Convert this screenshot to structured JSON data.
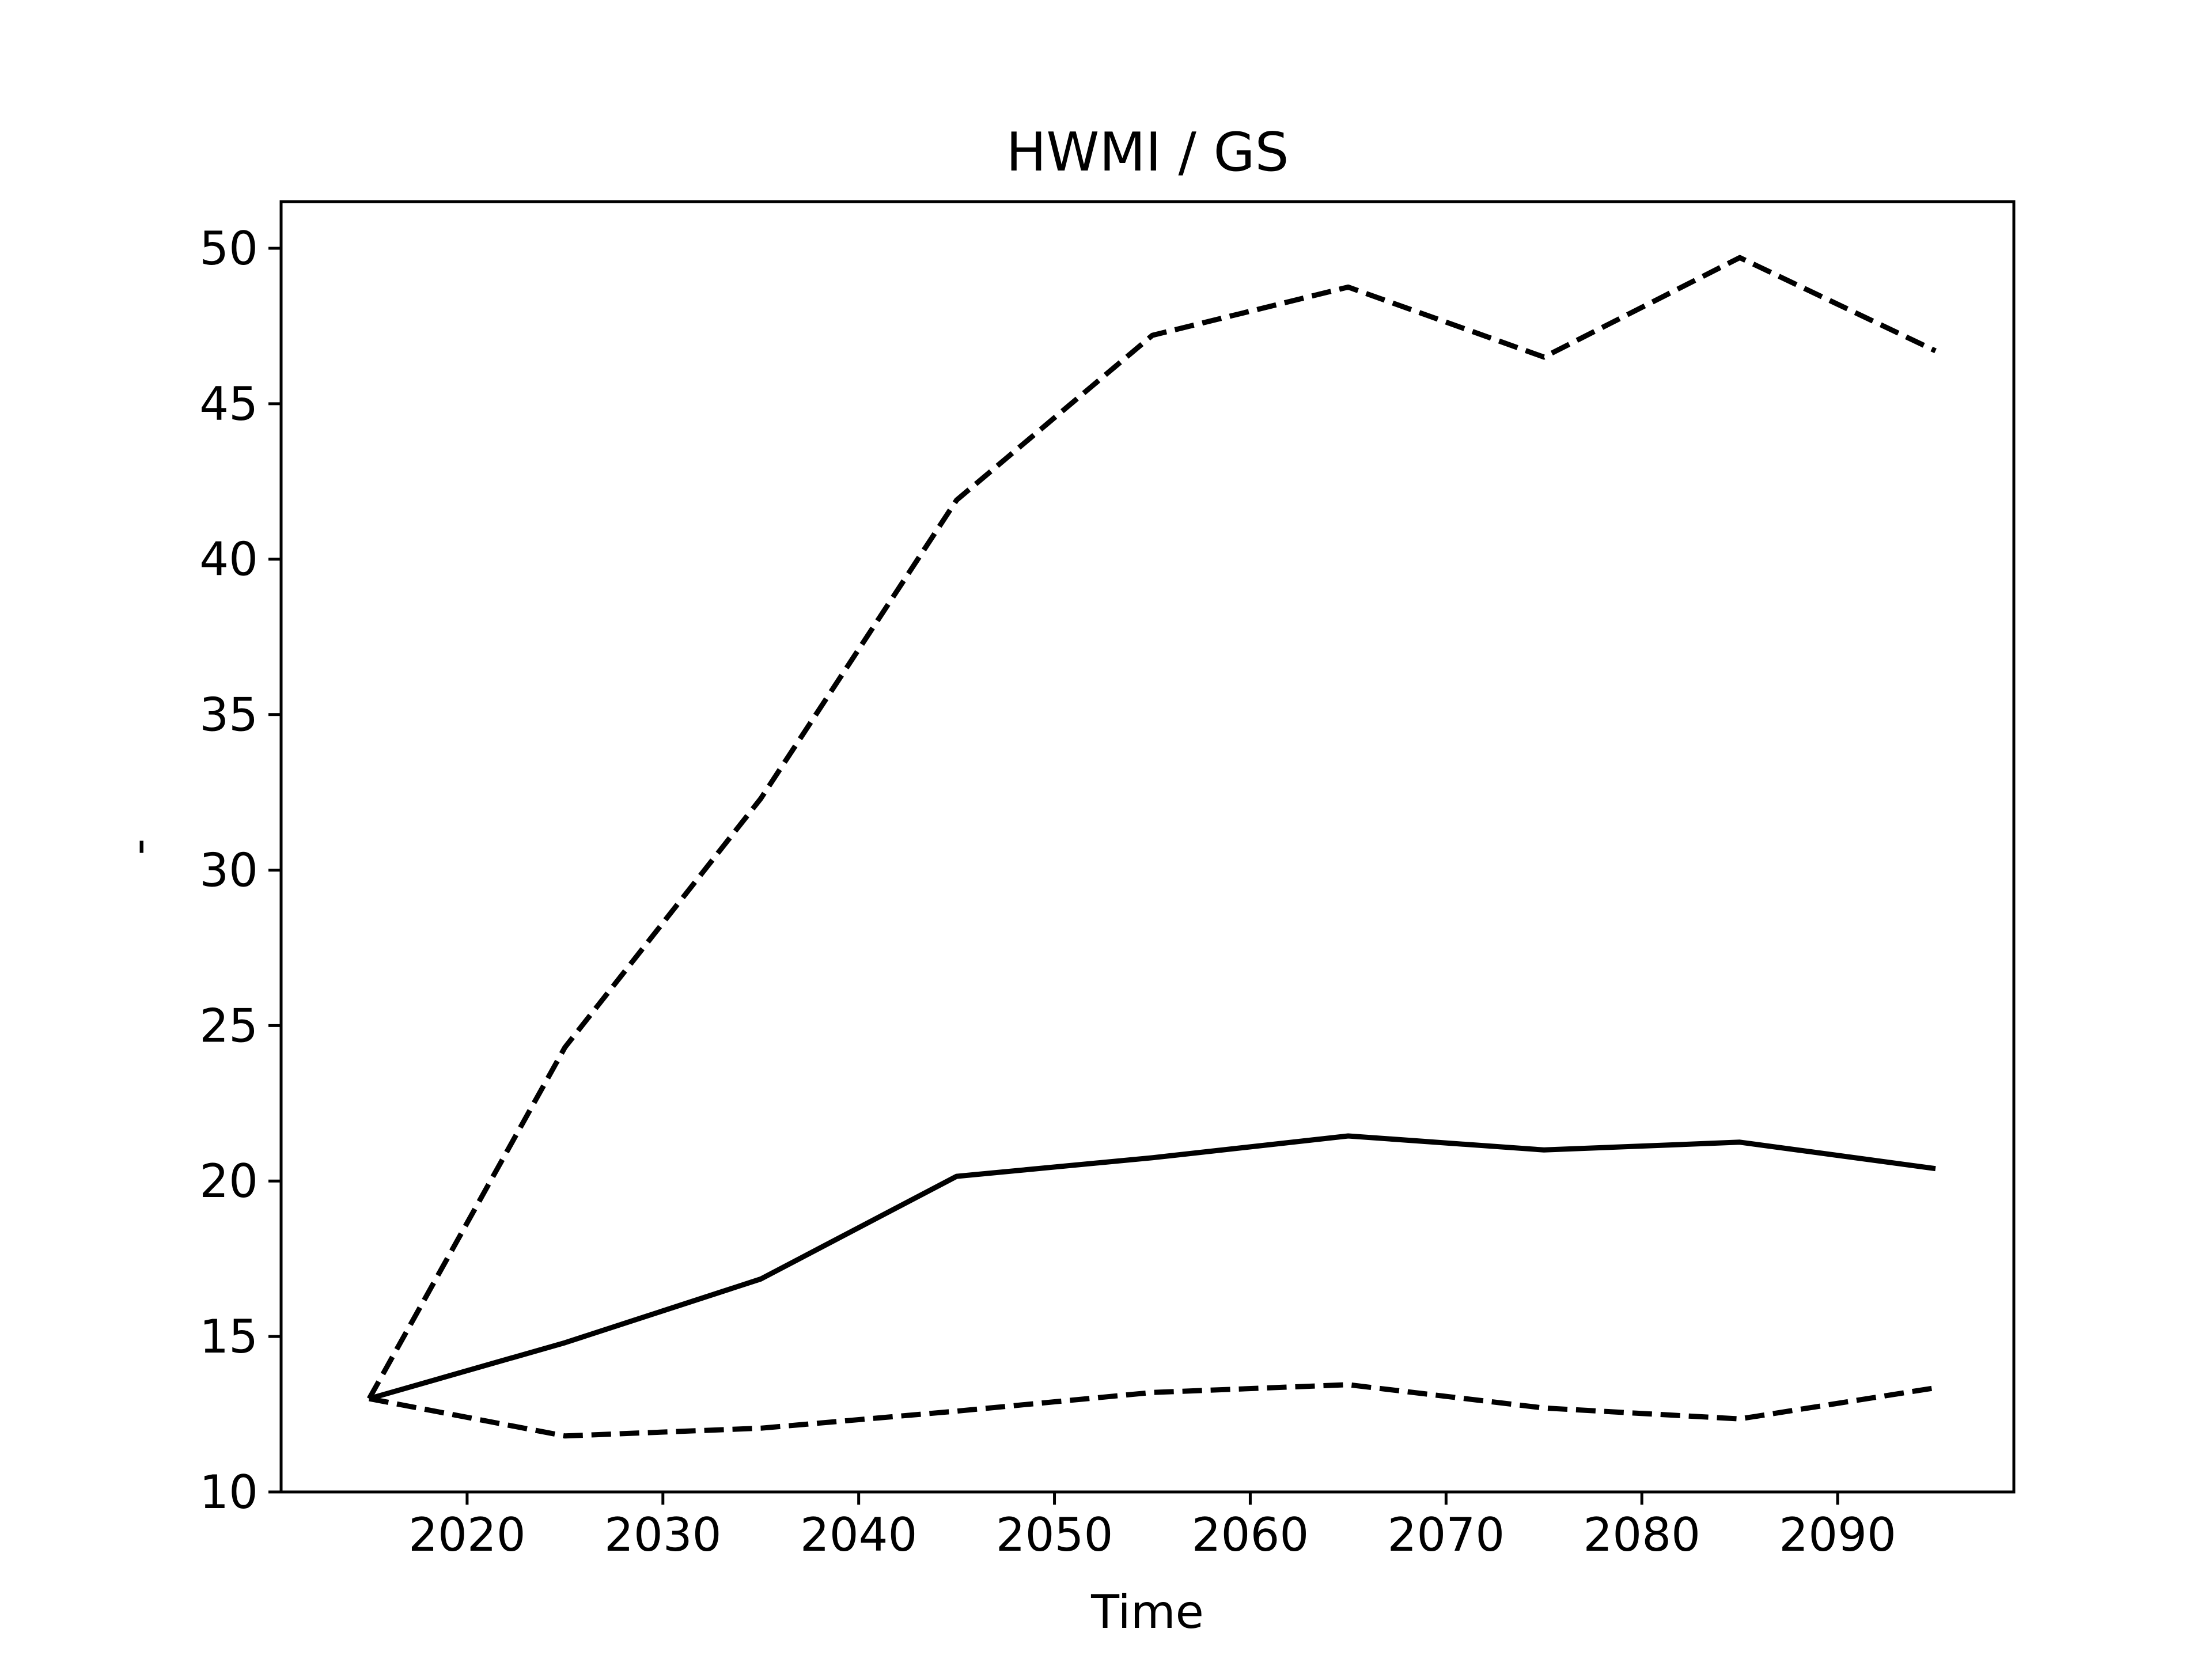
{
  "chart_data": {
    "type": "line",
    "title": "HWMI / GS",
    "xlabel": "Time",
    "ylabel": "-",
    "xlim": [
      2010.5,
      2099
    ],
    "ylim": [
      10,
      51.5
    ],
    "xticks": [
      2020,
      2030,
      2040,
      2050,
      2060,
      2070,
      2080,
      2090
    ],
    "yticks": [
      10,
      15,
      20,
      25,
      30,
      35,
      40,
      45,
      50
    ],
    "grid": false,
    "x": [
      2015,
      2025,
      2035,
      2045,
      2055,
      2065,
      2075,
      2085,
      2095
    ],
    "series": [
      {
        "style": "solid",
        "color": "#000000",
        "values": [
          13.0,
          14.8,
          16.85,
          20.15,
          20.75,
          21.45,
          21.0,
          21.25,
          20.4
        ]
      },
      {
        "style": "dashed",
        "color": "#000000",
        "values": [
          13.0,
          24.3,
          32.3,
          41.9,
          47.2,
          48.75,
          46.5,
          49.7,
          46.7
        ]
      },
      {
        "style": "dashed",
        "color": "#000000",
        "values": [
          13.0,
          11.8,
          12.05,
          12.6,
          13.2,
          13.45,
          12.7,
          12.35,
          13.35
        ]
      }
    ]
  }
}
